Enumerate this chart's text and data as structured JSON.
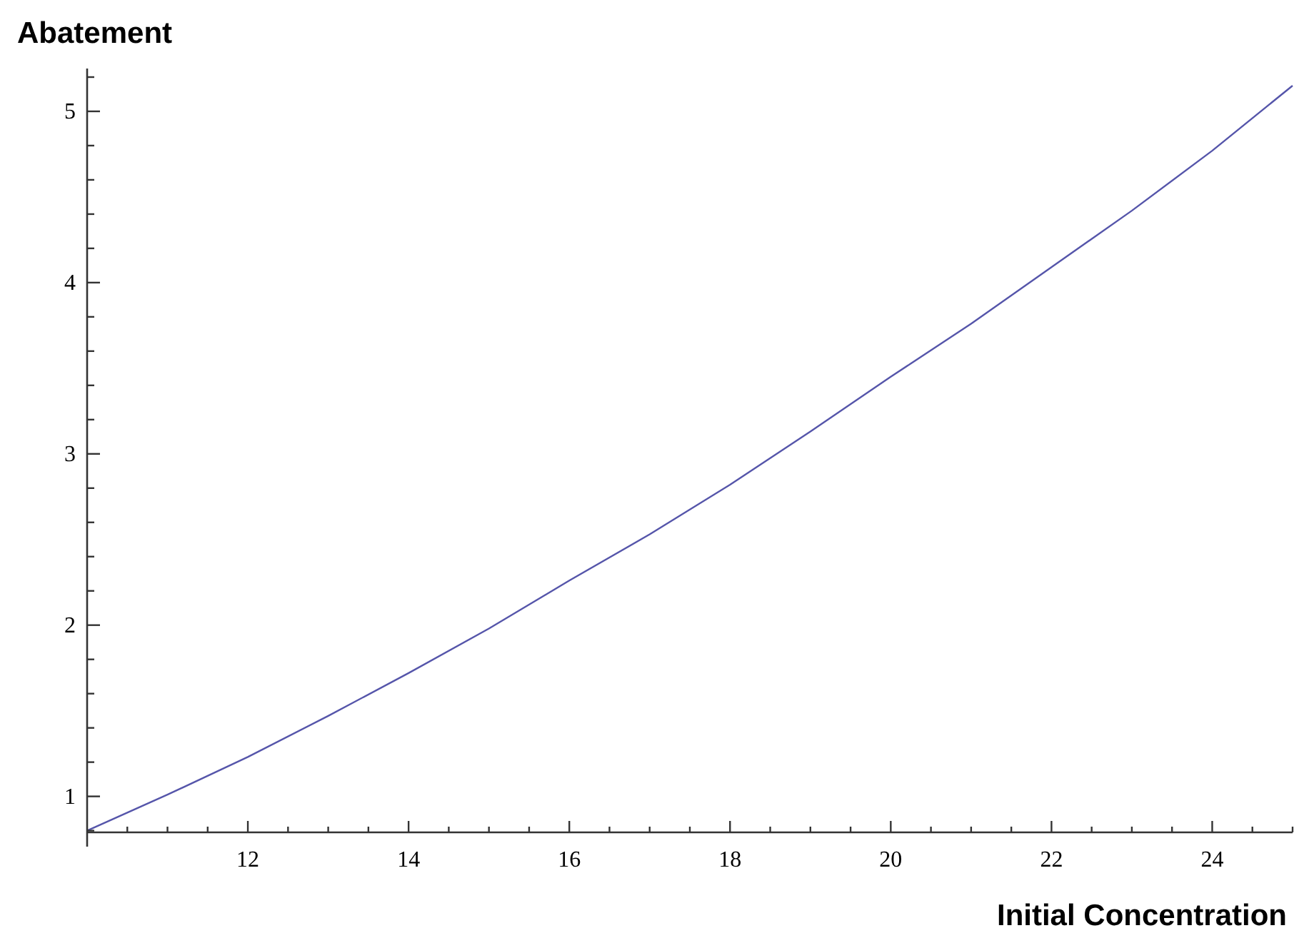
{
  "chart_data": {
    "type": "line",
    "xlabel": "Initial Concentration",
    "ylabel": "Abatement",
    "x": [
      10,
      11,
      12,
      13,
      14,
      15,
      16,
      17,
      18,
      19,
      20,
      21,
      22,
      23,
      24,
      25
    ],
    "series": [
      {
        "color": "#5555aa",
        "values": [
          0.8,
          1.01,
          1.23,
          1.47,
          1.72,
          1.98,
          2.26,
          2.53,
          2.82,
          3.13,
          3.45,
          3.76,
          4.09,
          4.42,
          4.77,
          5.15
        ]
      }
    ],
    "xlim": [
      10,
      25
    ],
    "ylim": [
      0.79,
      5.25
    ],
    "xticks": [
      {
        "value": 10.5,
        "label": null
      },
      {
        "value": 11,
        "label": null
      },
      {
        "value": 11.5,
        "label": null
      },
      12,
      {
        "value": 12.5,
        "label": null
      },
      {
        "value": 13,
        "label": null
      },
      {
        "value": 13.5,
        "label": null
      },
      14,
      {
        "value": 14.5,
        "label": null
      },
      {
        "value": 15,
        "label": null
      },
      {
        "value": 15.5,
        "label": null
      },
      16,
      {
        "value": 16.5,
        "label": null
      },
      {
        "value": 17,
        "label": null
      },
      {
        "value": 17.5,
        "label": null
      },
      18,
      {
        "value": 18.5,
        "label": null
      },
      {
        "value": 19,
        "label": null
      },
      {
        "value": 19.5,
        "label": null
      },
      20,
      {
        "value": 20.5,
        "label": null
      },
      {
        "value": 21,
        "label": null
      },
      {
        "value": 21.5,
        "label": null
      },
      22,
      {
        "value": 22.5,
        "label": null
      },
      {
        "value": 23,
        "label": null
      },
      {
        "value": 23.5,
        "label": null
      },
      24,
      {
        "value": 24.5,
        "label": null
      },
      {
        "value": 25,
        "label": null
      }
    ],
    "yticks": [
      {
        "value": 0.8,
        "label": null
      },
      1,
      {
        "value": 1.2,
        "label": null
      },
      {
        "value": 1.4,
        "label": null
      },
      {
        "value": 1.6,
        "label": null
      },
      {
        "value": 1.8,
        "label": null
      },
      2,
      {
        "value": 2.2,
        "label": null
      },
      {
        "value": 2.4,
        "label": null
      },
      {
        "value": 2.6,
        "label": null
      },
      {
        "value": 2.8,
        "label": null
      },
      3,
      {
        "value": 3.2,
        "label": null
      },
      {
        "value": 3.4,
        "label": null
      },
      {
        "value": 3.6,
        "label": null
      },
      {
        "value": 3.8,
        "label": null
      },
      4,
      {
        "value": 4.2,
        "label": null
      },
      {
        "value": 4.4,
        "label": null
      },
      {
        "value": 4.6,
        "label": null
      },
      {
        "value": 4.8,
        "label": null
      },
      5,
      {
        "value": 5.2,
        "label": null
      }
    ],
    "grid": false,
    "marker": "none",
    "line_style": "solid"
  }
}
